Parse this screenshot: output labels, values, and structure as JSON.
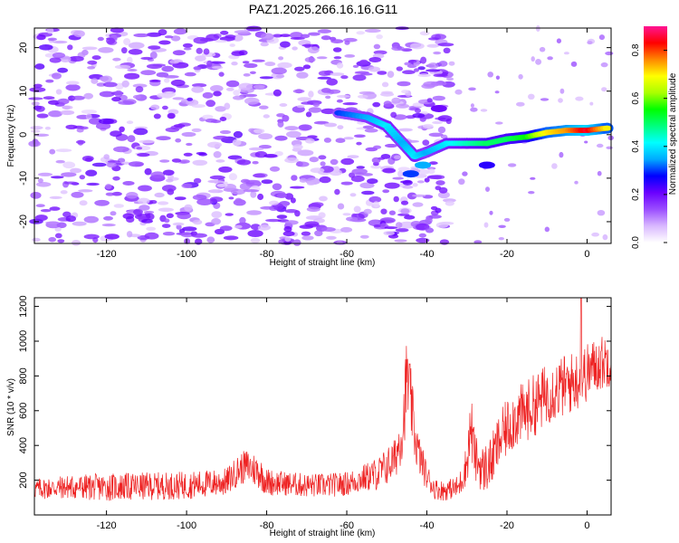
{
  "figure": {
    "title": "PAZ1.2025.266.16.16.G11"
  },
  "chart_data": [
    {
      "type": "heatmap",
      "title": "PAZ1.2025.266.16.16.G11",
      "xlabel": "Height of straight line (km)",
      "ylabel": "Frequency (Hz)",
      "xlim": [
        -138,
        6
      ],
      "ylim": [
        -25,
        24.5
      ],
      "xticks": [
        -120,
        -100,
        -80,
        -60,
        -40,
        -20,
        0
      ],
      "xtick_labels": [
        "-120",
        "-100",
        "-80",
        "-60",
        "-40",
        "-20",
        "0"
      ],
      "yticks": [
        -20,
        -10,
        0,
        10,
        20
      ],
      "ytick_labels": [
        "-20",
        "-10",
        "0",
        "10",
        "20"
      ],
      "colorbar": {
        "label": "Normalized spectral amplitude",
        "range": [
          0,
          0.9
        ],
        "ticks": [
          0,
          0.2,
          0.4,
          0.6,
          0.8
        ],
        "tick_labels": [
          "0.0",
          "0.2",
          "0.4",
          "0.6",
          "0.8"
        ],
        "colormap": [
          "#ffffff",
          "#d9b8ff",
          "#9a4dff",
          "#6a00ff",
          "#0000ff",
          "#00aaff",
          "#00ffff",
          "#00ff7f",
          "#00ff00",
          "#aaff00",
          "#ffff00",
          "#ff8800",
          "#ff0000",
          "#ff1493"
        ]
      },
      "noise_region": {
        "x_range": [
          -138,
          -34
        ],
        "freq_range": [
          -25,
          24.5
        ],
        "typical_amplitude": 0.2
      },
      "ridge": [
        {
          "x": -62,
          "freq": 5,
          "amp": 0.3
        },
        {
          "x": -55,
          "freq": 4,
          "amp": 0.35
        },
        {
          "x": -50,
          "freq": 2,
          "amp": 0.4
        },
        {
          "x": -46,
          "freq": -2,
          "amp": 0.35
        },
        {
          "x": -43,
          "freq": -5,
          "amp": 0.4
        },
        {
          "x": -40,
          "freq": -4,
          "amp": 0.35
        },
        {
          "x": -35,
          "freq": -2,
          "amp": 0.4
        },
        {
          "x": -30,
          "freq": -2,
          "amp": 0.45
        },
        {
          "x": -25,
          "freq": -2,
          "amp": 0.5
        },
        {
          "x": -20,
          "freq": -1,
          "amp": 0.5
        },
        {
          "x": -15,
          "freq": -0.5,
          "amp": 0.55
        },
        {
          "x": -10,
          "freq": 0.5,
          "amp": 0.7
        },
        {
          "x": -5,
          "freq": 1,
          "amp": 0.75
        },
        {
          "x": 0,
          "freq": 1,
          "amp": 0.85
        },
        {
          "x": 5,
          "freq": 1.5,
          "amp": 0.7
        }
      ],
      "blobs": [
        {
          "x": -41,
          "freq": -7,
          "amp": 0.35
        },
        {
          "x": -44,
          "freq": -9,
          "amp": 0.3
        },
        {
          "x": -25,
          "freq": -7,
          "amp": 0.25
        },
        {
          "x": -37,
          "freq": 6,
          "amp": 0.2
        }
      ]
    },
    {
      "type": "line",
      "xlabel": "Height of straight line (km)",
      "ylabel": "SNR (10 * v/v)",
      "xlim": [
        -138,
        6
      ],
      "ylim": [
        0,
        1250
      ],
      "xticks": [
        -120,
        -100,
        -80,
        -60,
        -40,
        -20,
        0
      ],
      "xtick_labels": [
        "-120",
        "-100",
        "-80",
        "-60",
        "-40",
        "-20",
        "0"
      ],
      "yticks": [
        200,
        400,
        600,
        800,
        1000,
        1200
      ],
      "ytick_labels": [
        "200",
        "400",
        "600",
        "800",
        "1000",
        "1200"
      ],
      "series": [
        {
          "color": "#ee2222",
          "x": [
            -138,
            -130,
            -120,
            -110,
            -100,
            -95,
            -90,
            -87,
            -85,
            -82,
            -80,
            -75,
            -70,
            -65,
            -60,
            -56,
            -52,
            -48,
            -46,
            -45,
            -44,
            -43,
            -42,
            -40,
            -38,
            -36,
            -34,
            -32,
            -30,
            -29,
            -28,
            -26,
            -24,
            -22,
            -20,
            -18,
            -16,
            -14,
            -12,
            -10,
            -8,
            -6,
            -4,
            -2,
            0,
            2,
            4,
            6
          ],
          "y": [
            150,
            160,
            160,
            165,
            170,
            180,
            190,
            260,
            280,
            250,
            190,
            180,
            170,
            170,
            180,
            210,
            240,
            320,
            500,
            800,
            650,
            450,
            350,
            220,
            150,
            140,
            150,
            160,
            300,
            520,
            330,
            260,
            300,
            420,
            500,
            560,
            580,
            620,
            650,
            700,
            720,
            740,
            760,
            780,
            820,
            860,
            880,
            900
          ],
          "spread": [
            60,
            70,
            80,
            80,
            80,
            80,
            80,
            90,
            100,
            100,
            80,
            70,
            70,
            70,
            70,
            80,
            100,
            120,
            180,
            250,
            200,
            150,
            120,
            80,
            60,
            60,
            60,
            70,
            120,
            200,
            140,
            140,
            150,
            160,
            170,
            180,
            180,
            180,
            180,
            180,
            180,
            180,
            180,
            170,
            170,
            160,
            160,
            160
          ],
          "peak": {
            "x": -1.5,
            "y": 1250
          }
        }
      ]
    }
  ]
}
